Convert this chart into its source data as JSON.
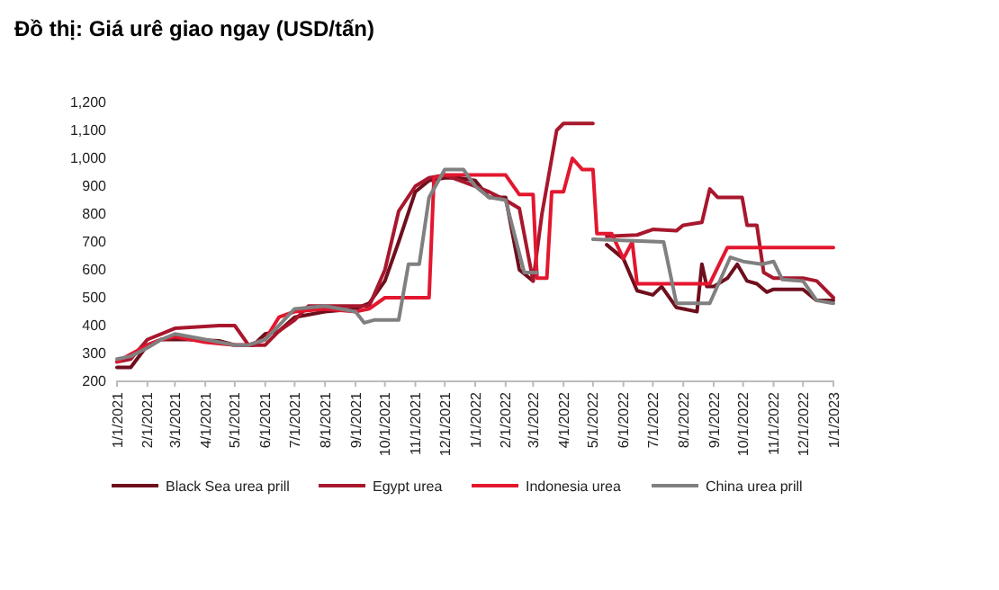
{
  "chart_data": {
    "type": "line",
    "title": "Đồ thị: Giá urê giao ngay (USD/tấn)",
    "xlim": [
      "2021-01-01",
      "2023-01-01"
    ],
    "xticks": [
      {
        "value": "2021-01-01",
        "label": "1/1/2021"
      },
      {
        "value": "2021-02-01",
        "label": "2/1/2021"
      },
      {
        "value": "2021-03-01",
        "label": "3/1/2021"
      },
      {
        "value": "2021-04-01",
        "label": "4/1/2021"
      },
      {
        "value": "2021-05-01",
        "label": "5/1/2021"
      },
      {
        "value": "2021-06-01",
        "label": "6/1/2021"
      },
      {
        "value": "2021-07-01",
        "label": "7/1/2021"
      },
      {
        "value": "2021-08-01",
        "label": "8/1/2021"
      },
      {
        "value": "2021-09-01",
        "label": "9/1/2021"
      },
      {
        "value": "2021-10-01",
        "label": "10/1/2021"
      },
      {
        "value": "2021-11-01",
        "label": "11/1/2021"
      },
      {
        "value": "2021-12-01",
        "label": "12/1/2021"
      },
      {
        "value": "2022-01-01",
        "label": "1/1/2022"
      },
      {
        "value": "2022-02-01",
        "label": "2/1/2022"
      },
      {
        "value": "2022-03-01",
        "label": "3/1/2022"
      },
      {
        "value": "2022-04-01",
        "label": "4/1/2022"
      },
      {
        "value": "2022-05-01",
        "label": "5/1/2022"
      },
      {
        "value": "2022-06-01",
        "label": "6/1/2022"
      },
      {
        "value": "2022-07-01",
        "label": "7/1/2022"
      },
      {
        "value": "2022-08-01",
        "label": "8/1/2022"
      },
      {
        "value": "2022-09-01",
        "label": "9/1/2022"
      },
      {
        "value": "2022-10-01",
        "label": "10/1/2022"
      },
      {
        "value": "2022-11-01",
        "label": "11/1/2022"
      },
      {
        "value": "2022-12-01",
        "label": "12/1/2022"
      },
      {
        "value": "2023-01-01",
        "label": "1/1/2023"
      }
    ],
    "ylim": [
      200,
      1200
    ],
    "yticks": [
      200,
      300,
      400,
      500,
      600,
      700,
      800,
      900,
      {
        "value": 1000,
        "label": "1,000"
      },
      {
        "value": 1100,
        "label": "1,100"
      },
      {
        "value": 1200,
        "label": "1,200"
      }
    ],
    "grid": false,
    "legend": "bottom",
    "line_style": "solid",
    "marker": "none",
    "series": [
      {
        "name": "Black Sea urea prill",
        "color": "#6e0f1d",
        "x": [
          "2021-01-01",
          "2021-01-15",
          "2021-02-01",
          "2021-02-15",
          "2021-03-15",
          "2021-04-15",
          "2021-05-01",
          "2021-05-20",
          "2021-06-01",
          "2021-06-15",
          "2021-07-01",
          "2021-08-01",
          "2021-09-01",
          "2021-09-15",
          "2021-10-01",
          "2021-10-15",
          "2021-11-01",
          "2021-11-15",
          "2021-12-01",
          "2021-12-15",
          "2022-01-01",
          "2022-01-15",
          "2022-02-01",
          "2022-02-15",
          "2022-03-01",
          "2022-03-10",
          "2022-05-15",
          "2022-06-01",
          "2022-06-15",
          "2022-07-01",
          "2022-07-10",
          "2022-07-25",
          "2022-08-15",
          "2022-08-20",
          "2022-08-25",
          "2022-09-01",
          "2022-09-15",
          "2022-09-25",
          "2022-10-05",
          "2022-10-15",
          "2022-10-25",
          "2022-11-01",
          "2022-12-01",
          "2022-12-15",
          "2023-01-01"
        ],
        "values": [
          250,
          250,
          330,
          350,
          350,
          345,
          330,
          330,
          370,
          380,
          430,
          450,
          460,
          480,
          560,
          700,
          880,
          920,
          930,
          930,
          920,
          860,
          860,
          600,
          560,
          null,
          690,
          640,
          525,
          510,
          540,
          465,
          450,
          620,
          540,
          540,
          570,
          620,
          560,
          550,
          520,
          530,
          530,
          490,
          490
        ]
      },
      {
        "name": "Egypt urea",
        "color": "#a8172d",
        "x": [
          "2021-01-01",
          "2021-01-15",
          "2021-02-01",
          "2021-02-15",
          "2021-03-01",
          "2021-04-15",
          "2021-05-01",
          "2021-05-15",
          "2021-06-01",
          "2021-06-15",
          "2021-07-01",
          "2021-07-15",
          "2021-08-15",
          "2021-09-15",
          "2021-10-01",
          "2021-10-15",
          "2021-11-01",
          "2021-11-15",
          "2021-12-01",
          "2022-01-01",
          "2022-01-15",
          "2022-02-01",
          "2022-02-15",
          "2022-03-01",
          "2022-03-10",
          "2022-03-25",
          "2022-04-01",
          "2022-05-01",
          "2022-05-05",
          "2022-05-15",
          "2022-06-15",
          "2022-07-01",
          "2022-07-25",
          "2022-08-01",
          "2022-08-20",
          "2022-08-28",
          "2022-09-05",
          "2022-09-30",
          "2022-10-05",
          "2022-10-15",
          "2022-10-22",
          "2022-11-01",
          "2022-12-01",
          "2022-12-15",
          "2023-01-01"
        ],
        "values": [
          270,
          280,
          350,
          370,
          390,
          400,
          400,
          330,
          330,
          380,
          420,
          470,
          470,
          470,
          600,
          810,
          900,
          930,
          940,
          900,
          880,
          850,
          820,
          560,
          800,
          1100,
          1125,
          1125,
          null,
          720,
          725,
          745,
          740,
          760,
          770,
          890,
          860,
          860,
          760,
          760,
          590,
          570,
          570,
          560,
          500
        ]
      },
      {
        "name": "Indonesia urea",
        "color": "#e3172f",
        "x": [
          "2021-01-01",
          "2021-02-01",
          "2021-02-15",
          "2021-03-01",
          "2021-04-01",
          "2021-05-01",
          "2021-05-15",
          "2021-06-01",
          "2021-06-15",
          "2021-07-01",
          "2021-08-01",
          "2021-09-01",
          "2021-09-15",
          "2021-10-01",
          "2021-11-15",
          "2021-11-20",
          "2021-12-01",
          "2022-01-01",
          "2022-01-15",
          "2022-02-01",
          "2022-02-15",
          "2022-03-01",
          "2022-03-05",
          "2022-03-15",
          "2022-03-20",
          "2022-04-01",
          "2022-04-10",
          "2022-04-20",
          "2022-05-01",
          "2022-05-05",
          "2022-05-20",
          "2022-06-01",
          "2022-06-10",
          "2022-06-15",
          "2022-08-28",
          "2022-09-15",
          "2023-01-01"
        ],
        "values": [
          270,
          330,
          350,
          360,
          340,
          330,
          330,
          350,
          430,
          450,
          460,
          450,
          460,
          500,
          500,
          930,
          940,
          940,
          940,
          940,
          870,
          870,
          570,
          570,
          880,
          880,
          1000,
          960,
          960,
          730,
          730,
          640,
          700,
          550,
          550,
          680,
          680
        ]
      },
      {
        "name": "China urea prill",
        "color": "#808080",
        "x": [
          "2021-01-01",
          "2021-01-15",
          "2021-02-01",
          "2021-02-15",
          "2021-03-01",
          "2021-04-01",
          "2021-05-01",
          "2021-05-15",
          "2021-06-01",
          "2021-06-15",
          "2021-07-01",
          "2021-08-01",
          "2021-09-01",
          "2021-09-10",
          "2021-09-20",
          "2021-10-15",
          "2021-10-25",
          "2021-11-05",
          "2021-11-15",
          "2021-12-01",
          "2021-12-20",
          "2022-01-01",
          "2022-01-15",
          "2022-02-01",
          "2022-02-20",
          "2022-03-05",
          "2022-03-10",
          "2022-05-01",
          "2022-07-12",
          "2022-07-25",
          "2022-08-28",
          "2022-09-18",
          "2022-10-01",
          "2022-10-20",
          "2022-11-01",
          "2022-11-10",
          "2022-12-01",
          "2022-12-15",
          "2023-01-01"
        ],
        "values": [
          280,
          290,
          320,
          350,
          370,
          350,
          330,
          330,
          350,
          400,
          460,
          470,
          450,
          410,
          420,
          420,
          620,
          620,
          860,
          960,
          960,
          900,
          860,
          850,
          590,
          590,
          null,
          710,
          700,
          480,
          480,
          645,
          630,
          620,
          630,
          565,
          560,
          490,
          480
        ]
      }
    ]
  }
}
